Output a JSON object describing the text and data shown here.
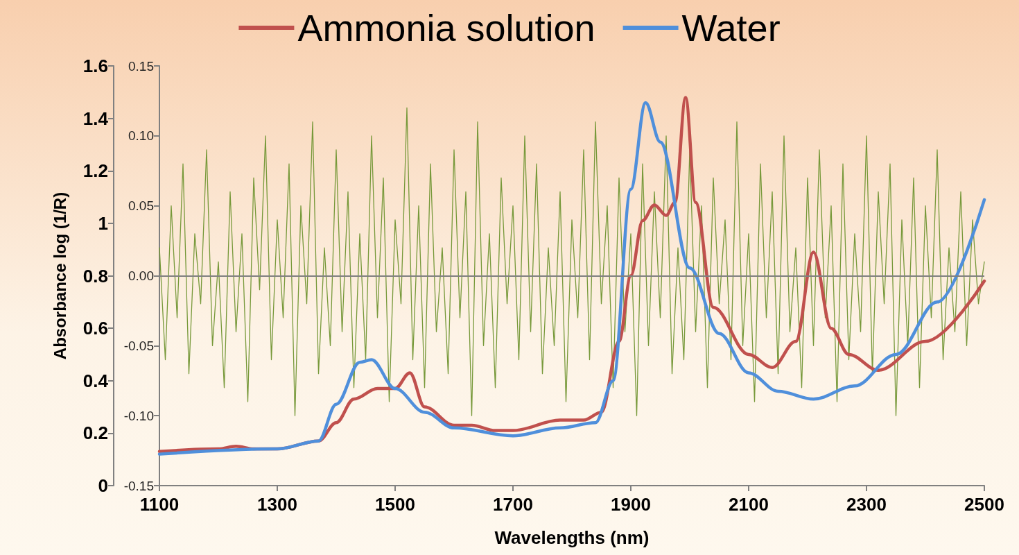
{
  "chart_data": {
    "type": "line",
    "xlabel": "Wavelengths (nm)",
    "ylabel": "Absorbance log (1/R)",
    "xlim": [
      1100,
      2500
    ],
    "xticks": [
      1100,
      1300,
      1500,
      1700,
      1900,
      2100,
      2300,
      2500
    ],
    "ylim": [
      0,
      1.6
    ],
    "yticks": [
      0,
      0.2,
      0.4,
      0.6,
      0.8,
      1,
      1.2,
      1.4,
      1.6
    ],
    "y2lim": [
      -0.15,
      0.15
    ],
    "y2ticks": [
      {
        "value": -0.15,
        "label": "-0.15"
      },
      {
        "value": -0.1,
        "label": "-0.10"
      },
      {
        "value": -0.05,
        "label": "-0.05"
      },
      {
        "value": 0,
        "label": "0.00"
      },
      {
        "value": 0.05,
        "label": "0.05"
      },
      {
        "value": 0.1,
        "label": "0.10"
      },
      {
        "value": 0.15,
        "label": "0.15"
      }
    ],
    "ref_lines": [
      {
        "axis": "y2",
        "value": 0,
        "color": "#808080"
      }
    ],
    "legend": "top",
    "grid": false,
    "marker": "none",
    "line_style": "solid",
    "series": [
      {
        "color": "#77993a",
        "axis": "y2",
        "x": [
          1100,
          1110,
          1120,
          1130,
          1140,
          1150,
          1160,
          1170,
          1180,
          1190,
          1200,
          1210,
          1220,
          1230,
          1240,
          1250,
          1260,
          1270,
          1280,
          1290,
          1300,
          1310,
          1320,
          1330,
          1340,
          1350,
          1360,
          1370,
          1380,
          1390,
          1400,
          1410,
          1420,
          1430,
          1440,
          1450,
          1460,
          1470,
          1480,
          1490,
          1500,
          1510,
          1520,
          1530,
          1540,
          1550,
          1560,
          1570,
          1580,
          1590,
          1600,
          1610,
          1620,
          1630,
          1640,
          1650,
          1660,
          1670,
          1680,
          1690,
          1700,
          1710,
          1720,
          1730,
          1740,
          1750,
          1760,
          1770,
          1780,
          1790,
          1800,
          1810,
          1820,
          1830,
          1840,
          1850,
          1860,
          1870,
          1880,
          1890,
          1900,
          1910,
          1920,
          1930,
          1940,
          1950,
          1960,
          1970,
          1980,
          1990,
          2000,
          2010,
          2020,
          2030,
          2040,
          2050,
          2060,
          2070,
          2080,
          2090,
          2100,
          2110,
          2120,
          2130,
          2140,
          2150,
          2160,
          2170,
          2180,
          2190,
          2200,
          2210,
          2220,
          2230,
          2240,
          2250,
          2260,
          2270,
          2280,
          2290,
          2300,
          2310,
          2320,
          2330,
          2340,
          2350,
          2360,
          2370,
          2380,
          2390,
          2400,
          2410,
          2420,
          2430,
          2440,
          2450,
          2460,
          2470,
          2480,
          2490,
          2500
        ],
        "values": [
          0.02,
          -0.06,
          0.05,
          -0.03,
          0.08,
          -0.07,
          0.03,
          -0.02,
          0.09,
          -0.05,
          0.01,
          -0.08,
          0.06,
          -0.04,
          0.03,
          -0.09,
          0.07,
          -0.01,
          0.1,
          -0.06,
          0.04,
          -0.03,
          0.08,
          -0.1,
          0.05,
          -0.02,
          0.11,
          -0.07,
          0.02,
          -0.05,
          0.09,
          -0.04,
          0.06,
          -0.08,
          0.03,
          -0.06,
          0.1,
          -0.03,
          0.07,
          -0.09,
          0.04,
          -0.02,
          0.12,
          -0.06,
          0.05,
          -0.08,
          0.08,
          -0.04,
          0.02,
          -0.07,
          0.09,
          -0.03,
          0.06,
          -0.1,
          0.11,
          -0.05,
          0.03,
          -0.08,
          0.07,
          -0.02,
          0.05,
          -0.06,
          0.1,
          -0.04,
          0.08,
          -0.07,
          0.02,
          -0.05,
          0.06,
          -0.09,
          0.04,
          -0.03,
          0.09,
          -0.06,
          0.11,
          -0.02,
          0.05,
          -0.08,
          0.07,
          -0.04,
          0.03,
          -0.1,
          0.08,
          -0.05,
          0.06,
          -0.03,
          0.1,
          -0.07,
          0.02,
          -0.06,
          0.09,
          -0.04,
          0.05,
          -0.08,
          0.07,
          -0.02,
          0.04,
          -0.06,
          0.11,
          -0.05,
          0.03,
          -0.09,
          0.08,
          -0.03,
          0.06,
          -0.07,
          0.1,
          -0.04,
          0.02,
          -0.08,
          0.07,
          -0.05,
          0.09,
          -0.03,
          0.05,
          -0.09,
          0.08,
          -0.06,
          0.03,
          -0.04,
          0.1,
          -0.07,
          0.06,
          -0.02,
          0.08,
          -0.1,
          0.04,
          -0.05,
          0.07,
          -0.08,
          0.05,
          -0.03,
          0.09,
          -0.06,
          0.02,
          -0.04,
          0.06,
          -0.05,
          0.04,
          -0.02,
          0.01
        ]
      },
      {
        "name": "Ammonia solution",
        "color": "#c0504d",
        "x": [
          1100,
          1200,
          1230,
          1260,
          1300,
          1370,
          1400,
          1430,
          1470,
          1500,
          1525,
          1550,
          1600,
          1630,
          1670,
          1700,
          1780,
          1820,
          1850,
          1880,
          1900,
          1920,
          1940,
          1960,
          1975,
          1993,
          2010,
          2040,
          2100,
          2140,
          2180,
          2210,
          2240,
          2270,
          2320,
          2400,
          2500
        ],
        "values": [
          0.13,
          0.14,
          0.15,
          0.14,
          0.14,
          0.17,
          0.24,
          0.33,
          0.37,
          0.37,
          0.43,
          0.3,
          0.23,
          0.23,
          0.21,
          0.21,
          0.25,
          0.25,
          0.28,
          0.55,
          0.8,
          1.01,
          1.07,
          1.03,
          1.08,
          1.48,
          1.08,
          0.68,
          0.5,
          0.45,
          0.55,
          0.89,
          0.6,
          0.5,
          0.44,
          0.55,
          0.78
        ]
      },
      {
        "name": "Water",
        "color": "#4f8fdb",
        "x": [
          1100,
          1300,
          1370,
          1400,
          1440,
          1460,
          1500,
          1550,
          1600,
          1700,
          1780,
          1840,
          1870,
          1900,
          1925,
          1950,
          2000,
          2050,
          2100,
          2150,
          2210,
          2280,
          2350,
          2420,
          2500
        ],
        "values": [
          0.12,
          0.14,
          0.17,
          0.31,
          0.47,
          0.48,
          0.37,
          0.28,
          0.22,
          0.19,
          0.22,
          0.24,
          0.4,
          1.13,
          1.46,
          1.31,
          0.83,
          0.58,
          0.43,
          0.36,
          0.33,
          0.38,
          0.5,
          0.7,
          1.09
        ]
      }
    ]
  }
}
